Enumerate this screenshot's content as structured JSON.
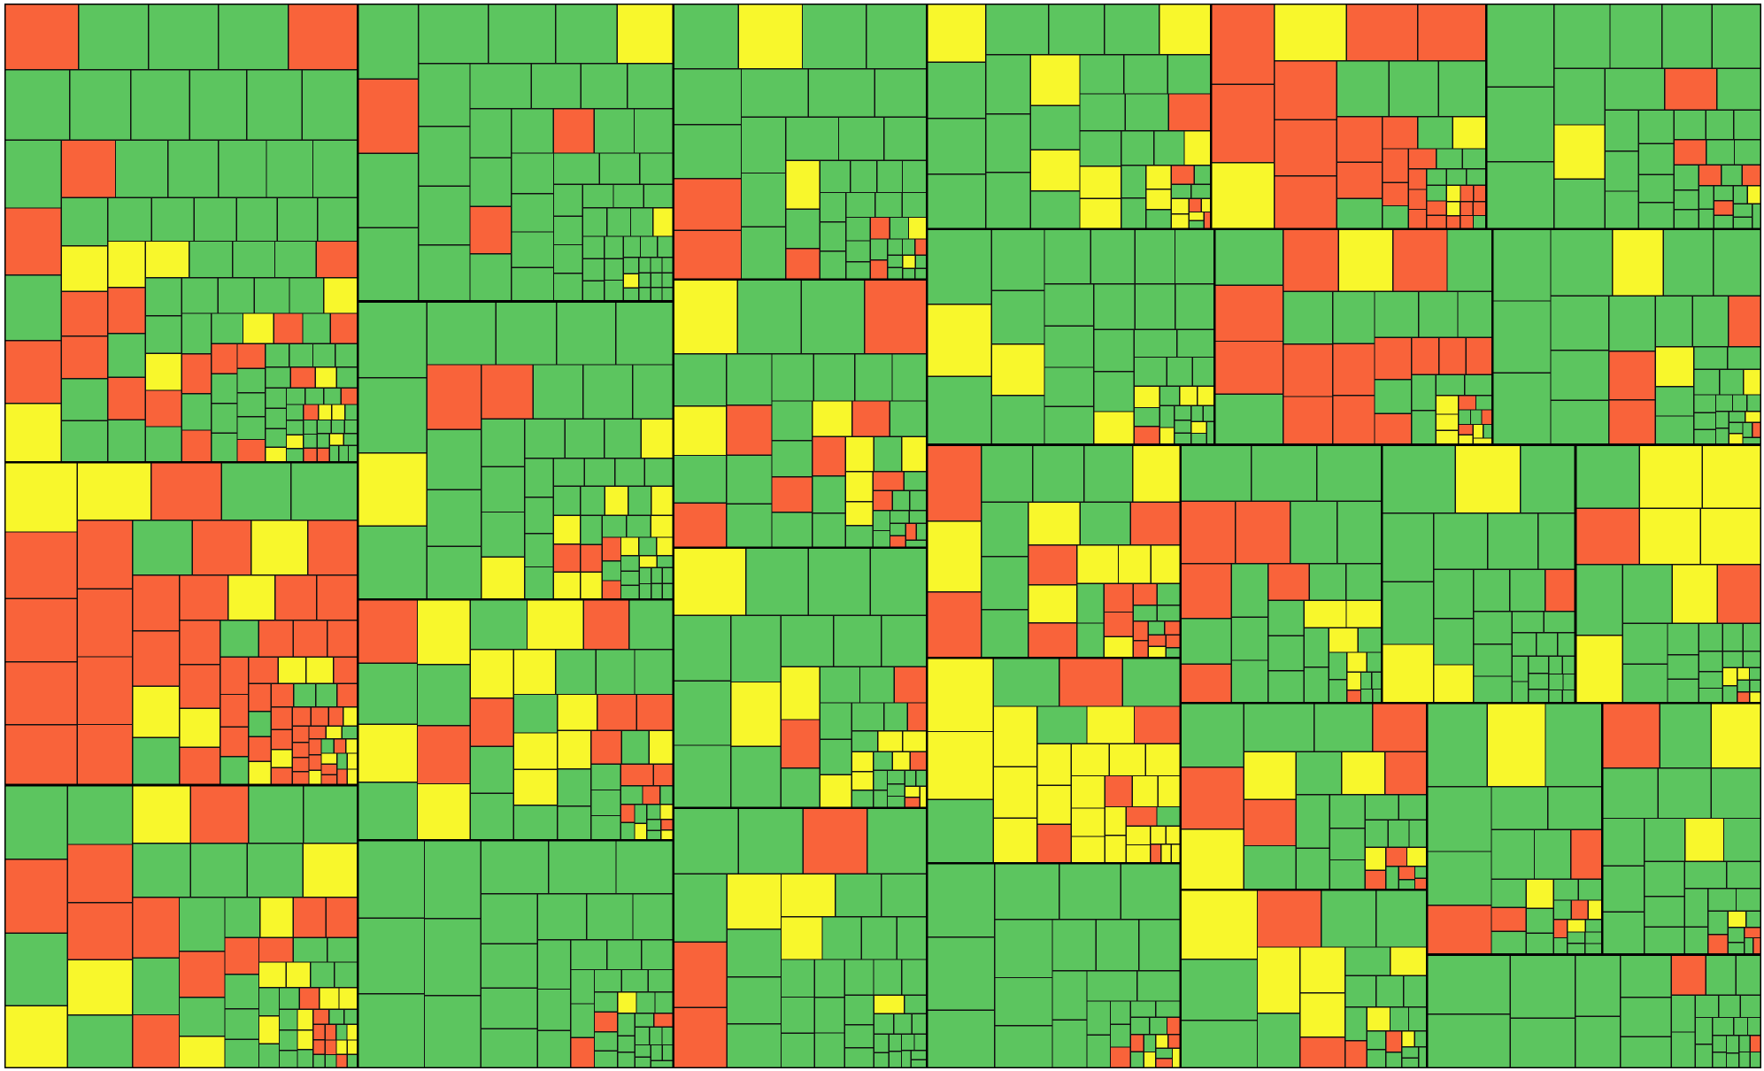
{
  "chart_data": {
    "type": "treemap",
    "title": "",
    "legend": "none",
    "colors": {
      "green": "#5cc55f",
      "yellow": "#f8f72c",
      "red": "#f9633a",
      "border": "#111111"
    },
    "groups": [
      {
        "size": 5.7,
        "red": 0.62,
        "yellow": 0.18
      },
      {
        "size": 8.1,
        "red": 0.22,
        "yellow": 0.2
      },
      {
        "size": 5.0,
        "red": 0.22,
        "yellow": 0.2
      },
      {
        "size": 3.8,
        "red": 0.25,
        "yellow": 0.22
      },
      {
        "size": 3.1,
        "red": 0.55,
        "yellow": 0.12
      },
      {
        "size": 3.1,
        "red": 0.08,
        "yellow": 0.08
      },
      {
        "size": 3.6,
        "red": 0.03,
        "yellow": 0.05
      },
      {
        "size": 4.7,
        "red": 0.05,
        "yellow": 0.05
      },
      {
        "size": 4.7,
        "red": 0.1,
        "yellow": 0.2
      },
      {
        "size": 2.6,
        "red": 0.2,
        "yellow": 0.55
      },
      {
        "size": 2.7,
        "red": 0.3,
        "yellow": 0.35
      },
      {
        "size": 3.3,
        "red": 0.18,
        "yellow": 0.3
      },
      {
        "size": 3.5,
        "red": 0.12,
        "yellow": 0.12
      },
      {
        "size": 3.2,
        "red": 0.1,
        "yellow": 0.25
      },
      {
        "size": 3.4,
        "red": 0.2,
        "yellow": 0.15
      },
      {
        "size": 3.1,
        "red": 0.08,
        "yellow": 0.12
      },
      {
        "size": 3.3,
        "red": 0.12,
        "yellow": 0.12
      },
      {
        "size": 2.9,
        "red": 0.12,
        "yellow": 0.12
      },
      {
        "size": 2.5,
        "red": 0.05,
        "yellow": 0.08
      },
      {
        "size": 2.4,
        "red": 0.2,
        "yellow": 0.15
      },
      {
        "size": 3.0,
        "red": 0.25,
        "yellow": 0.3
      },
      {
        "size": 2.6,
        "red": 0.08,
        "yellow": 0.12
      },
      {
        "size": 2.6,
        "red": 0.15,
        "yellow": 0.12
      },
      {
        "size": 2.2,
        "red": 0.12,
        "yellow": 0.3
      },
      {
        "size": 2.0,
        "red": 0.1,
        "yellow": 0.12
      },
      {
        "size": 2.2,
        "red": 0.15,
        "yellow": 0.12
      },
      {
        "size": 2.3,
        "red": 0.2,
        "yellow": 0.15
      },
      {
        "size": 1.9,
        "red": 0.05,
        "yellow": 0.05
      }
    ]
  }
}
